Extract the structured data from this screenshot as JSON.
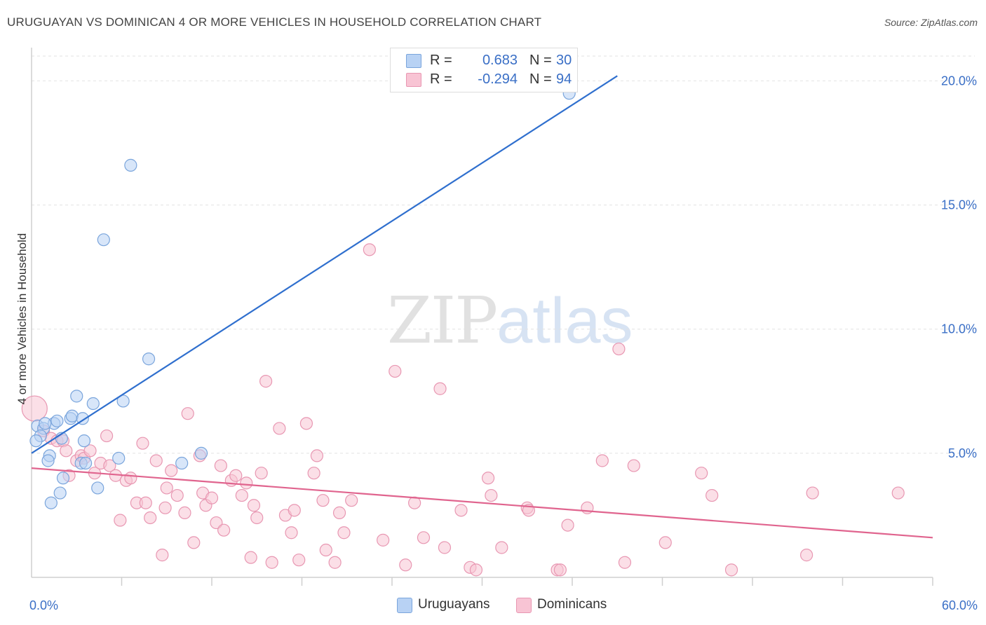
{
  "title": "URUGUAYAN VS DOMINICAN 4 OR MORE VEHICLES IN HOUSEHOLD CORRELATION CHART",
  "source": "Source: ZipAtlas.com",
  "watermark": {
    "zip": "ZIP",
    "atlas": "atlas"
  },
  "colors": {
    "blue_fill": "#b8d2f4",
    "blue_stroke": "#7aa5dc",
    "blue_line": "#2f6fce",
    "pink_fill": "#f8c4d4",
    "pink_stroke": "#e897b2",
    "pink_line": "#e0648e",
    "axis_text": "#3a6fc6",
    "grid": "#e2e2e2"
  },
  "legend": {
    "rows": [
      {
        "r_label": "R =",
        "r_value": "0.683",
        "n_label": "N =",
        "n_value": "30"
      },
      {
        "r_label": "R =",
        "r_value": "-0.294",
        "n_label": "N =",
        "n_value": "94"
      }
    ],
    "series_names": [
      "Uruguayans",
      "Dominicans"
    ]
  },
  "chart_data": {
    "type": "scatter",
    "title": "URUGUAYAN VS DOMINICAN 4 OR MORE VEHICLES IN HOUSEHOLD CORRELATION CHART",
    "xlabel": "",
    "ylabel": "4 or more Vehicles in Household",
    "xlim": [
      0,
      60
    ],
    "ylim": [
      0,
      21
    ],
    "x_tick_labels": [
      {
        "value": 0,
        "label": "0.0%"
      },
      {
        "value": 60,
        "label": "60.0%"
      }
    ],
    "x_minor_ticks": [
      6,
      12,
      18,
      24,
      30,
      36,
      42,
      48,
      54
    ],
    "y_ticks": [
      {
        "value": 5,
        "label": "5.0%"
      },
      {
        "value": 10,
        "label": "10.0%"
      },
      {
        "value": 15,
        "label": "15.0%"
      },
      {
        "value": 20,
        "label": "20.0%"
      }
    ],
    "series": [
      {
        "name": "Uruguayans",
        "R": 0.683,
        "N": 30,
        "trend": {
          "x0": 0,
          "y0": 5.0,
          "x1": 39,
          "y1": 20.2
        },
        "points": [
          [
            0.4,
            6.1
          ],
          [
            0.8,
            6.0
          ],
          [
            0.6,
            5.7
          ],
          [
            1.2,
            4.9
          ],
          [
            1.1,
            4.7
          ],
          [
            1.5,
            6.2
          ],
          [
            1.7,
            6.3
          ],
          [
            2.0,
            5.6
          ],
          [
            2.1,
            4.0
          ],
          [
            1.9,
            3.4
          ],
          [
            1.3,
            3.0
          ],
          [
            2.6,
            6.4
          ],
          [
            2.7,
            6.5
          ],
          [
            3.0,
            7.3
          ],
          [
            3.4,
            6.4
          ],
          [
            3.5,
            5.5
          ],
          [
            3.3,
            4.6
          ],
          [
            3.6,
            4.6
          ],
          [
            4.1,
            7.0
          ],
          [
            4.4,
            3.6
          ],
          [
            5.8,
            4.8
          ],
          [
            6.1,
            7.1
          ],
          [
            4.8,
            13.6
          ],
          [
            6.6,
            16.6
          ],
          [
            7.8,
            8.8
          ],
          [
            10.0,
            4.6
          ],
          [
            11.3,
            5.0
          ],
          [
            35.8,
            19.5
          ],
          [
            0.3,
            5.5
          ],
          [
            0.9,
            6.2
          ]
        ]
      },
      {
        "name": "Dominicans",
        "R": -0.294,
        "N": 94,
        "trend": {
          "x0": 0,
          "y0": 4.4,
          "x1": 60,
          "y1": 1.6
        },
        "points": [
          [
            0.2,
            6.8
          ],
          [
            0.8,
            5.9
          ],
          [
            1.3,
            5.6
          ],
          [
            1.7,
            5.5
          ],
          [
            2.1,
            5.5
          ],
          [
            2.3,
            5.1
          ],
          [
            2.5,
            4.1
          ],
          [
            3.0,
            4.7
          ],
          [
            3.3,
            4.9
          ],
          [
            3.5,
            4.8
          ],
          [
            3.9,
            5.1
          ],
          [
            4.2,
            4.2
          ],
          [
            4.6,
            4.6
          ],
          [
            5.0,
            5.7
          ],
          [
            5.2,
            4.5
          ],
          [
            5.6,
            4.1
          ],
          [
            5.9,
            2.3
          ],
          [
            6.3,
            3.9
          ],
          [
            6.6,
            4.0
          ],
          [
            7.0,
            3.0
          ],
          [
            7.4,
            5.4
          ],
          [
            7.6,
            3.0
          ],
          [
            7.9,
            2.4
          ],
          [
            8.3,
            4.7
          ],
          [
            8.7,
            0.9
          ],
          [
            8.9,
            2.8
          ],
          [
            9.3,
            4.3
          ],
          [
            9.7,
            3.3
          ],
          [
            10.2,
            2.6
          ],
          [
            10.4,
            6.6
          ],
          [
            10.8,
            1.4
          ],
          [
            11.2,
            4.9
          ],
          [
            11.4,
            3.4
          ],
          [
            11.6,
            2.9
          ],
          [
            12.0,
            3.2
          ],
          [
            12.3,
            2.2
          ],
          [
            12.6,
            4.5
          ],
          [
            12.8,
            1.9
          ],
          [
            13.3,
            3.9
          ],
          [
            13.6,
            4.1
          ],
          [
            14.0,
            3.3
          ],
          [
            14.3,
            3.8
          ],
          [
            14.6,
            0.8
          ],
          [
            15.0,
            2.4
          ],
          [
            15.3,
            4.2
          ],
          [
            15.6,
            7.9
          ],
          [
            16.0,
            0.6
          ],
          [
            16.5,
            6.0
          ],
          [
            16.9,
            2.5
          ],
          [
            17.3,
            1.8
          ],
          [
            17.5,
            2.7
          ],
          [
            17.8,
            0.7
          ],
          [
            18.3,
            6.2
          ],
          [
            18.8,
            4.2
          ],
          [
            19.0,
            4.9
          ],
          [
            19.4,
            3.1
          ],
          [
            19.6,
            1.1
          ],
          [
            20.2,
            0.6
          ],
          [
            20.5,
            2.6
          ],
          [
            20.8,
            1.8
          ],
          [
            21.3,
            3.1
          ],
          [
            22.5,
            13.2
          ],
          [
            23.4,
            1.5
          ],
          [
            24.2,
            8.3
          ],
          [
            24.9,
            0.5
          ],
          [
            25.5,
            3.0
          ],
          [
            26.1,
            1.6
          ],
          [
            27.2,
            7.6
          ],
          [
            27.5,
            1.2
          ],
          [
            28.6,
            2.7
          ],
          [
            29.2,
            0.4
          ],
          [
            29.6,
            0.3
          ],
          [
            30.4,
            4.0
          ],
          [
            30.6,
            3.3
          ],
          [
            31.3,
            1.2
          ],
          [
            33.0,
            2.8
          ],
          [
            33.1,
            2.7
          ],
          [
            35.0,
            0.3
          ],
          [
            35.2,
            0.3
          ],
          [
            35.7,
            2.1
          ],
          [
            37.0,
            2.8
          ],
          [
            38.0,
            4.7
          ],
          [
            39.1,
            9.2
          ],
          [
            39.5,
            0.6
          ],
          [
            40.1,
            4.5
          ],
          [
            42.2,
            1.4
          ],
          [
            44.6,
            4.2
          ],
          [
            45.3,
            3.3
          ],
          [
            46.6,
            0.3
          ],
          [
            51.6,
            0.9
          ],
          [
            52.0,
            3.4
          ],
          [
            57.7,
            3.4
          ],
          [
            14.8,
            2.9
          ],
          [
            9.0,
            3.6
          ]
        ]
      }
    ]
  }
}
